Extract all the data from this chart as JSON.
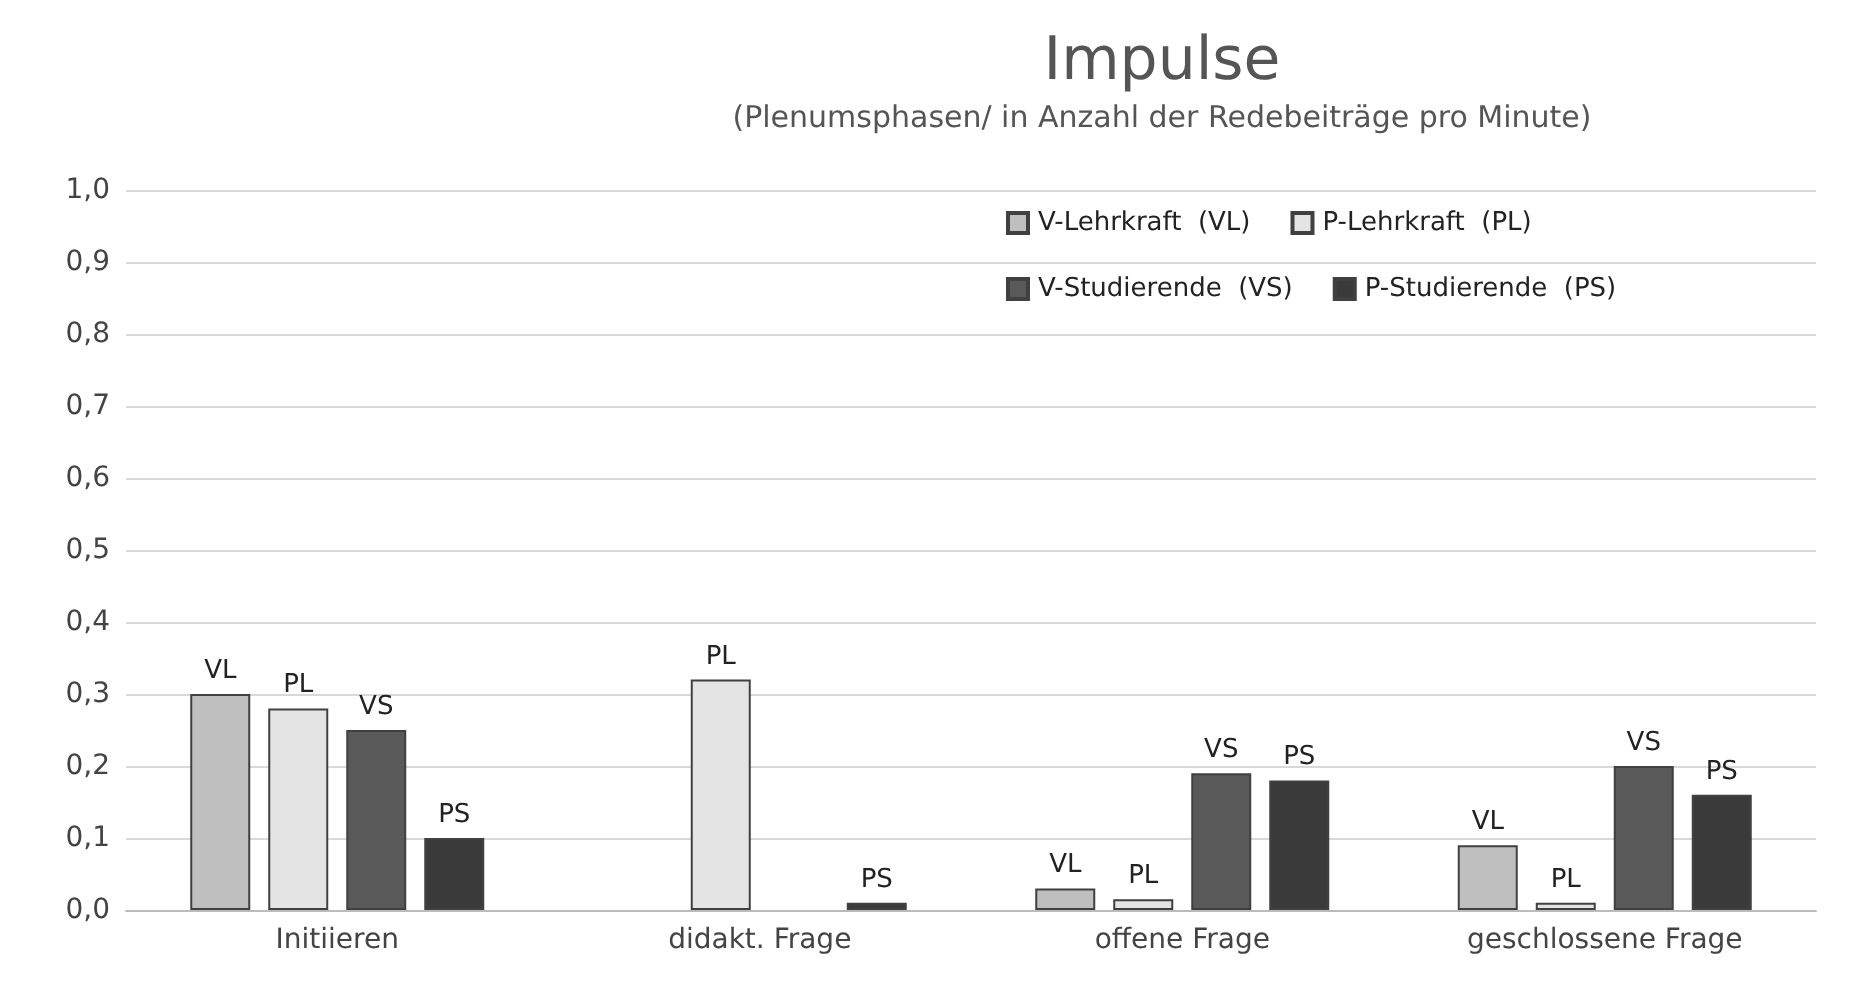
{
  "chart_data": {
    "type": "bar",
    "title": "Impulse",
    "subtitle": "(Plenumsphasen/ in Anzahl der Redebeiträge pro Minute)",
    "categories": [
      "Initiieren",
      "didakt. Frage",
      "offene Frage",
      "geschlossene Frage"
    ],
    "series": [
      {
        "name": "V-Lehrkraft  (VL)",
        "color": "#bfbfbf",
        "values": [
          0.3,
          null,
          0.03,
          0.09
        ],
        "value_labels": [
          "VL",
          null,
          "VL",
          "VL"
        ]
      },
      {
        "name": "P-Lehrkraft  (PL)",
        "color": "#e4e4e4",
        "values": [
          0.28,
          0.32,
          0.015,
          0.01
        ],
        "value_labels": [
          "PL",
          "PL",
          "PL",
          "PL"
        ]
      },
      {
        "name": "V-Studierende  (VS)",
        "color": "#595959",
        "values": [
          0.25,
          null,
          0.19,
          0.2
        ],
        "value_labels": [
          "VS",
          null,
          "VS",
          "VS"
        ]
      },
      {
        "name": "P-Studierende  (PS)",
        "color": "#3a3a3a",
        "values": [
          0.1,
          0.01,
          0.18,
          0.16
        ],
        "value_labels": [
          "PS",
          "PS",
          "PS",
          "PS"
        ]
      }
    ],
    "ylim": [
      0,
      1
    ],
    "yticks": [
      {
        "value": 0,
        "label": "0,0"
      },
      {
        "value": 0.1,
        "label": "0,1"
      },
      {
        "value": 0.2,
        "label": "0,2"
      },
      {
        "value": 0.3,
        "label": "0,3"
      },
      {
        "value": 0.4,
        "label": "0,4"
      },
      {
        "value": 0.5,
        "label": "0,5"
      },
      {
        "value": 0.6,
        "label": "0,6"
      },
      {
        "value": 0.7,
        "label": "0,7"
      },
      {
        "value": 0.8,
        "label": "0,8"
      },
      {
        "value": 0.9,
        "label": "0,9"
      },
      {
        "value": 1,
        "label": "1,0"
      }
    ],
    "grid": "y",
    "legend": "top right"
  }
}
